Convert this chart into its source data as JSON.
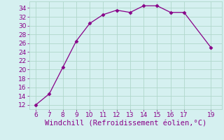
{
  "x": [
    6,
    7,
    8,
    9,
    10,
    11,
    12,
    13,
    14,
    15,
    16,
    17,
    19
  ],
  "y": [
    12,
    14.5,
    20.5,
    26.5,
    30.5,
    32.5,
    33.5,
    33,
    34.5,
    34.5,
    33,
    33,
    25
  ],
  "line_color": "#880088",
  "marker": "D",
  "marker_size": 2.5,
  "xlabel": "Windchill (Refroidissement éolien,°C)",
  "xlabel_color": "#880088",
  "background_color": "#d5f0f0",
  "grid_color": "#b0d8cc",
  "xlim": [
    5.5,
    19.8
  ],
  "ylim": [
    11,
    35.5
  ],
  "xticks": [
    6,
    7,
    8,
    9,
    10,
    11,
    12,
    13,
    14,
    15,
    16,
    17,
    19
  ],
  "yticks": [
    12,
    14,
    16,
    18,
    20,
    22,
    24,
    26,
    28,
    30,
    32,
    34
  ],
  "tick_color": "#880088",
  "tick_fontsize": 6.5,
  "xlabel_fontsize": 7.5
}
